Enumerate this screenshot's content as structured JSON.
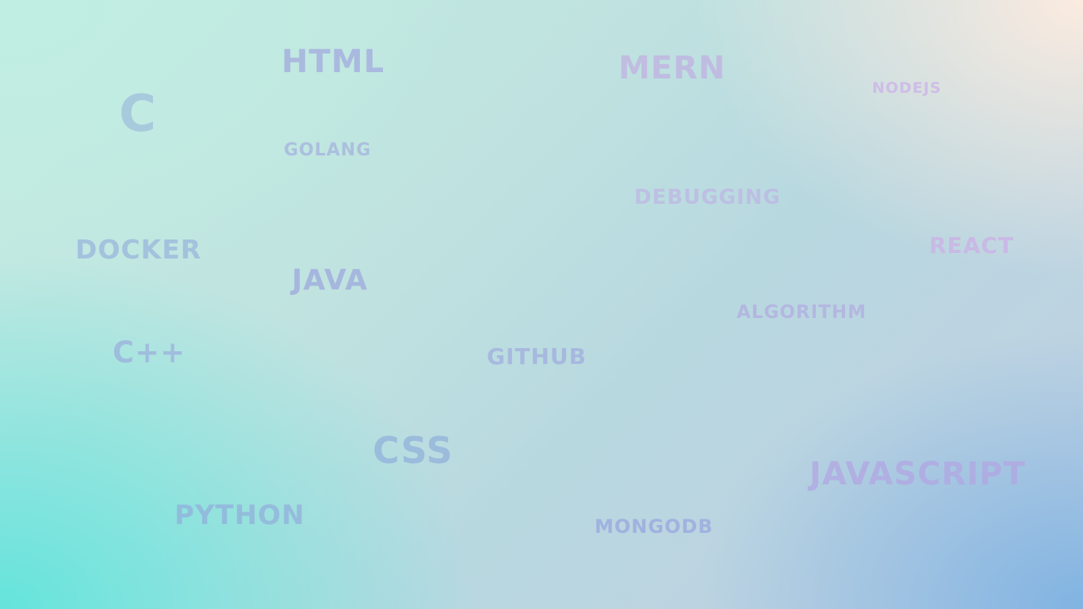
{
  "background": {
    "colors": [
      "#c4ece2",
      "#ffece0",
      "#7db2e2",
      "#64e4dc"
    ]
  },
  "words": {
    "html": "HTML",
    "mern": "MERN",
    "nodejs": "NODEJS",
    "c": "C",
    "golang": "GOLANG",
    "debugging": "DEBUGGING",
    "docker": "DOCKER",
    "react": "REACT",
    "java": "JAVA",
    "algorithm": "ALGORITHM",
    "cpp": "C++",
    "github": "GITHUB",
    "css": "CSS",
    "javascript": "JAVASCRIPT",
    "python": "PYTHON",
    "mongodb": "MONGODB"
  }
}
